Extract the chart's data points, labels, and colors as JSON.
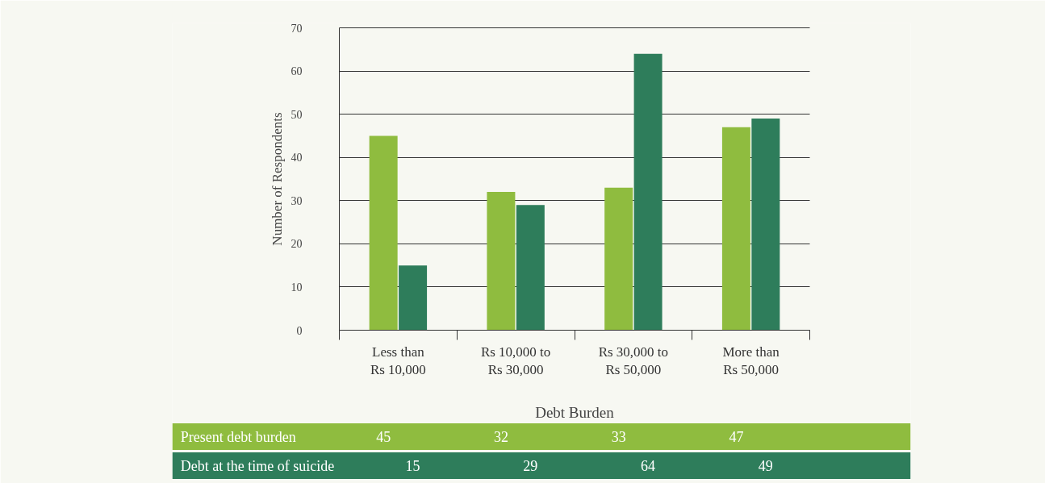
{
  "chart_data": {
    "type": "bar",
    "xlabel": "Debt Burden",
    "ylabel": "Number of Respondents",
    "categories": [
      "Less than Rs 10,000",
      "Rs 10,000 to Rs 30,000",
      "Rs 30,000 to Rs 50,000",
      "More than Rs 50,000"
    ],
    "series": [
      {
        "name": "Present debt burden",
        "color": "#8fbc3f",
        "values": [
          45,
          32,
          33,
          47
        ]
      },
      {
        "name": "Debt at the time of suicide",
        "color": "#2e7d5b",
        "values": [
          15,
          29,
          64,
          49
        ]
      }
    ],
    "ylim": [
      0,
      70
    ],
    "yticks": [
      0,
      10,
      20,
      30,
      40,
      50,
      60,
      70
    ],
    "grid": "y",
    "data_labels": true
  }
}
